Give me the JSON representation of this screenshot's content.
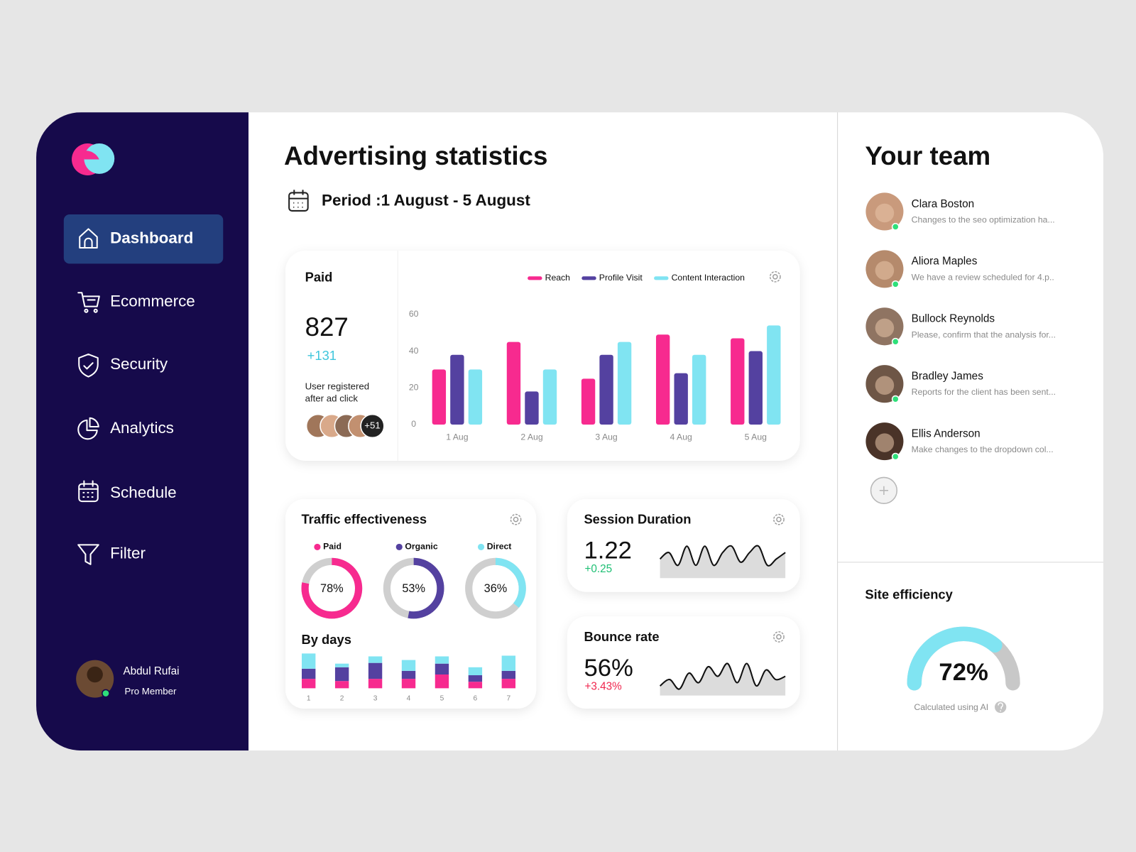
{
  "sidebar": {
    "nav": [
      "Dashboard",
      "Ecommerce",
      "Security",
      "Analytics",
      "Schedule",
      "Filter"
    ],
    "user": {
      "name": "Abdul Rufai",
      "role": "Pro Member"
    }
  },
  "header": {
    "title": "Advertising statistics",
    "period": "Period  :1 August - 5 August"
  },
  "paid_summary": {
    "title": "Paid",
    "total": "827",
    "change": "+131",
    "caption": [
      "User registered",
      "after ad click"
    ],
    "more_users": "+51"
  },
  "chart_data": [
    {
      "type": "bar",
      "categories": [
        "1 Aug",
        "2 Aug",
        "3 Aug",
        "4 Aug",
        "5 Aug"
      ],
      "series": [
        {
          "name": "Reach",
          "color": "#f72a8f",
          "values": [
            30,
            45,
            25,
            49,
            47
          ]
        },
        {
          "name": "Profile Visit",
          "color": "#5441a0",
          "values": [
            38,
            18,
            38,
            28,
            40
          ]
        },
        {
          "name": "Content Interaction",
          "color": "#80e4f2",
          "values": [
            30,
            30,
            45,
            38,
            54
          ]
        }
      ],
      "ylim": [
        0,
        60
      ],
      "yticks": [
        0,
        20,
        40,
        60
      ],
      "legend": "top-right"
    },
    {
      "type": "donut",
      "title": "Traffic effectiveness",
      "categories": [
        "Paid",
        "Organic",
        "Direct"
      ],
      "values": [
        78,
        53,
        36
      ],
      "value_labels": [
        "78%",
        "53%",
        "36%"
      ],
      "colors": [
        "#f72a8f",
        "#5441a0",
        "#80e4f2"
      ]
    },
    {
      "type": "stacked_bar",
      "title": "By days",
      "categories": [
        "1",
        "2",
        "3",
        "4",
        "5",
        "6",
        "7"
      ],
      "series": [
        {
          "color": "#f72a8f",
          "values": [
            13,
            10,
            13,
            13,
            19,
            9,
            13
          ]
        },
        {
          "color": "#5441a0",
          "values": [
            14,
            19,
            22,
            11,
            15,
            9,
            11
          ]
        },
        {
          "color": "#80e4f2",
          "values": [
            21,
            5,
            9,
            15,
            10,
            11,
            21
          ]
        }
      ],
      "ylim": [
        0,
        50
      ]
    },
    {
      "type": "area",
      "title": "Session Duration",
      "kpi": "1.22",
      "change": "+0.25",
      "change_color": "#1dbf73",
      "color": "#111111",
      "values": [
        6,
        8,
        4,
        10,
        4,
        10,
        4,
        8,
        10,
        5,
        8,
        10,
        4,
        6,
        8
      ],
      "ylim": [
        0,
        12
      ]
    },
    {
      "type": "area",
      "title": "Bounce rate",
      "kpi": "56%",
      "change": "+3.43%",
      "change_color": "#f0264e",
      "color": "#111111",
      "values": [
        3,
        5,
        2,
        7,
        4,
        9,
        6,
        10,
        4,
        10,
        3,
        8,
        5,
        6
      ],
      "ylim": [
        0,
        12
      ]
    },
    {
      "type": "gauge",
      "title": "Site efficiency",
      "value": 72,
      "value_label": "72%",
      "caption": "Calculated using AI",
      "ylim": [
        0,
        100
      ],
      "color": "#80e4f2"
    }
  ],
  "team": {
    "title": "Your team",
    "members": [
      {
        "name": "Clara Boston",
        "message": "Changes to the seo optimization ha..."
      },
      {
        "name": "Aliora Maples",
        "message": "We have a review scheduled for 4.p.."
      },
      {
        "name": "Bullock Reynolds",
        "message": "Please, confirm that the analysis for..."
      },
      {
        "name": "Bradley James",
        "message": "Reports for the client has been sent..."
      },
      {
        "name": "Ellis Anderson",
        "message": "Make changes to the dropdown col..."
      }
    ]
  }
}
